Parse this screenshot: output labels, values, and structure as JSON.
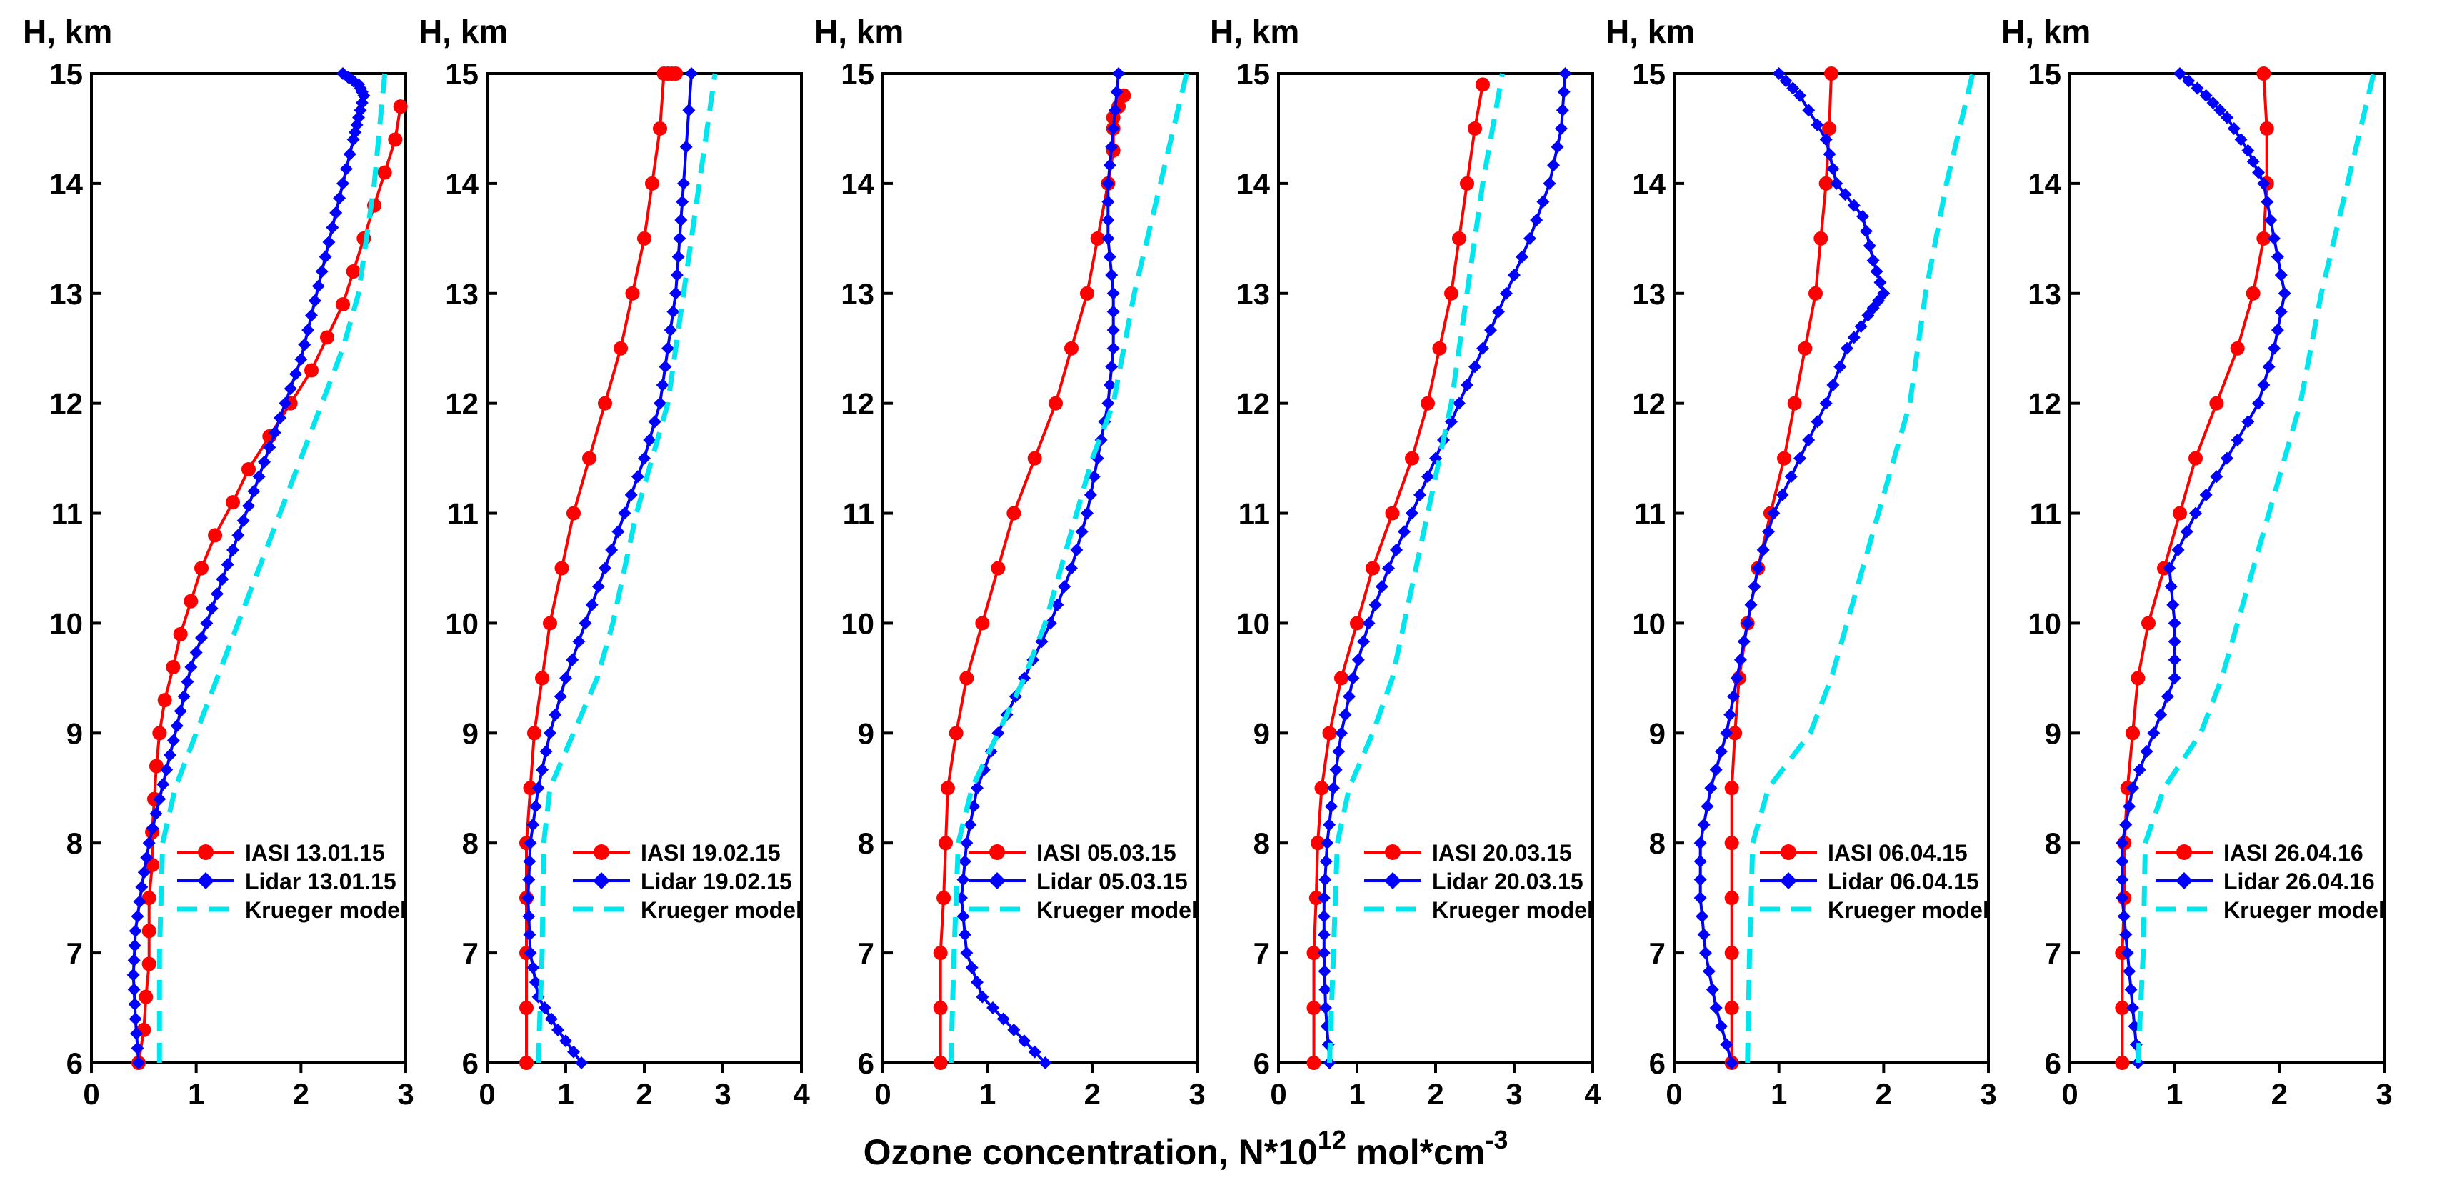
{
  "figure": {
    "xlabel_main": "Ozone concentration, N*10",
    "xlabel_sup1": "12",
    "xlabel_mid": " mol*cm",
    "xlabel_sup2": "-3"
  },
  "colors": {
    "iasi": "#ff0000",
    "lidar": "#0000ff",
    "krueger": "#00e5ee"
  },
  "chart_data": [
    {
      "type": "line",
      "ylabel": "H, km",
      "ylim": [
        6,
        15
      ],
      "xlim": [
        0,
        3
      ],
      "xticks": [
        "0",
        "1",
        "2",
        "3"
      ],
      "yticks": [
        "6",
        "7",
        "8",
        "9",
        "10",
        "11",
        "12",
        "13",
        "14",
        "15"
      ],
      "legend": [
        "IASI 13.01.15",
        "Lidar 13.01.15",
        "Krueger model"
      ],
      "series": [
        {
          "name": "IASI 13.01.15",
          "x": [
            0.45,
            0.5,
            0.52,
            0.55,
            0.55,
            0.55,
            0.58,
            0.58,
            0.6,
            0.62,
            0.65,
            0.7,
            0.78,
            0.85,
            0.95,
            1.05,
            1.18,
            1.35,
            1.5,
            1.7,
            1.9,
            2.1,
            2.25,
            2.4,
            2.5,
            2.6,
            2.7,
            2.8,
            2.9,
            2.95
          ],
          "y": [
            6,
            6.3,
            6.6,
            6.9,
            7.2,
            7.5,
            7.8,
            8.1,
            8.4,
            8.7,
            9,
            9.3,
            9.6,
            9.9,
            10.2,
            10.5,
            10.8,
            11.1,
            11.4,
            11.7,
            12,
            12.3,
            12.6,
            12.9,
            13.2,
            13.5,
            13.8,
            14.1,
            14.4,
            14.7
          ]
        },
        {
          "name": "Lidar 13.01.15",
          "x": [
            0.45,
            0.42,
            0.4,
            0.42,
            0.48,
            0.55,
            0.65,
            0.75,
            0.85,
            0.95,
            1.1,
            1.25,
            1.4,
            1.55,
            1.7,
            1.85,
            2.0,
            2.1,
            2.2,
            2.3,
            2.4,
            2.5,
            2.55,
            2.6,
            2.55,
            2.4
          ],
          "y": [
            6,
            6.4,
            6.8,
            7.2,
            7.6,
            8,
            8.4,
            8.8,
            9.2,
            9.6,
            10,
            10.4,
            10.8,
            11.2,
            11.6,
            12,
            12.4,
            12.8,
            13.2,
            13.6,
            14,
            14.4,
            14.6,
            14.8,
            14.9,
            15
          ]
        },
        {
          "name": "Krueger model",
          "x": [
            0.65,
            0.65,
            0.68,
            0.8,
            1.0,
            1.2,
            1.4,
            1.6,
            1.8,
            2.0,
            2.2,
            2.4,
            2.55,
            2.7,
            2.8
          ],
          "y": [
            6,
            7,
            8,
            8.5,
            9,
            9.5,
            10,
            10.5,
            11,
            11.5,
            12,
            12.5,
            13,
            14,
            15
          ]
        }
      ]
    },
    {
      "type": "line",
      "ylabel": "H, km",
      "ylim": [
        6,
        15
      ],
      "xlim": [
        0,
        4
      ],
      "xticks": [
        "0",
        "1",
        "2",
        "3",
        "4"
      ],
      "yticks": [
        "6",
        "7",
        "8",
        "9",
        "10",
        "11",
        "12",
        "13",
        "14",
        "15"
      ],
      "legend": [
        "IASI 19.02.15",
        "Lidar 19.02.15",
        "Krueger model"
      ],
      "series": [
        {
          "name": "IASI 19.02.15",
          "x": [
            0.5,
            0.5,
            0.5,
            0.5,
            0.5,
            0.55,
            0.6,
            0.7,
            0.8,
            0.95,
            1.1,
            1.3,
            1.5,
            1.7,
            1.85,
            2.0,
            2.1,
            2.2,
            2.25,
            2.3,
            2.35,
            2.4
          ],
          "y": [
            6,
            6.5,
            7,
            7.5,
            8,
            8.5,
            9,
            9.5,
            10,
            10.5,
            11,
            11.5,
            12,
            12.5,
            13,
            13.5,
            14,
            14.5,
            15,
            15,
            15,
            15
          ]
        },
        {
          "name": "Lidar 19.02.15",
          "x": [
            1.2,
            0.9,
            0.65,
            0.55,
            0.52,
            0.55,
            0.65,
            0.8,
            1.0,
            1.25,
            1.5,
            1.75,
            2.0,
            2.2,
            2.3,
            2.4,
            2.45,
            2.5,
            2.6
          ],
          "y": [
            6,
            6.3,
            6.6,
            7,
            7.5,
            8,
            8.5,
            9,
            9.5,
            10,
            10.5,
            11,
            11.5,
            12,
            12.5,
            13,
            13.5,
            14,
            15
          ]
        },
        {
          "name": "Krueger model",
          "x": [
            0.65,
            0.7,
            0.72,
            0.8,
            1.1,
            1.4,
            1.6,
            1.75,
            1.9,
            2.1,
            2.3,
            2.5,
            2.7,
            2.9
          ],
          "y": [
            6,
            7,
            8,
            8.5,
            9,
            9.5,
            10,
            10.5,
            11,
            11.5,
            12,
            13,
            14,
            15
          ]
        }
      ]
    },
    {
      "type": "line",
      "ylabel": "H, km",
      "ylim": [
        6,
        15
      ],
      "xlim": [
        0,
        3
      ],
      "xticks": [
        "0",
        "1",
        "2",
        "3"
      ],
      "yticks": [
        "6",
        "7",
        "8",
        "9",
        "10",
        "11",
        "12",
        "13",
        "14",
        "15"
      ],
      "legend": [
        "IASI 05.03.15",
        "Lidar 05.03.15",
        "Krueger model"
      ],
      "series": [
        {
          "name": "IASI 05.03.15",
          "x": [
            0.55,
            0.55,
            0.55,
            0.58,
            0.6,
            0.62,
            0.7,
            0.8,
            0.95,
            1.1,
            1.25,
            1.45,
            1.65,
            1.8,
            1.95,
            2.05,
            2.15,
            2.2,
            2.2,
            2.2,
            2.25,
            2.3
          ],
          "y": [
            6,
            6.5,
            7,
            7.5,
            8,
            8.5,
            9,
            9.5,
            10,
            10.5,
            11,
            11.5,
            12,
            12.5,
            13,
            13.5,
            14,
            14.3,
            14.5,
            14.6,
            14.7,
            14.8
          ]
        },
        {
          "name": "Lidar 05.03.15",
          "x": [
            1.55,
            1.25,
            0.95,
            0.8,
            0.75,
            0.8,
            0.9,
            1.1,
            1.35,
            1.6,
            1.8,
            1.95,
            2.05,
            2.15,
            2.2,
            2.2,
            2.15,
            2.15,
            2.2,
            2.25
          ],
          "y": [
            6,
            6.3,
            6.6,
            7,
            7.5,
            8,
            8.5,
            9,
            9.5,
            10,
            10.5,
            11,
            11.5,
            12,
            12.5,
            13,
            13.5,
            14,
            14.5,
            15
          ]
        },
        {
          "name": "Krueger model",
          "x": [
            0.65,
            0.68,
            0.72,
            0.85,
            1.1,
            1.35,
            1.55,
            1.7,
            1.85,
            2.0,
            2.2,
            2.4,
            2.65,
            2.9
          ],
          "y": [
            6,
            7,
            8,
            8.5,
            9,
            9.5,
            10,
            10.5,
            11,
            11.5,
            12,
            13,
            14,
            15
          ]
        }
      ]
    },
    {
      "type": "line",
      "ylabel": "H, km",
      "ylim": [
        6,
        15
      ],
      "xlim": [
        0,
        4
      ],
      "xticks": [
        "0",
        "1",
        "2",
        "3",
        "4"
      ],
      "yticks": [
        "6",
        "7",
        "8",
        "9",
        "10",
        "11",
        "12",
        "13",
        "14",
        "15"
      ],
      "legend": [
        "IASI 20.03.15",
        "Lidar 20.03.15",
        "Krueger model"
      ],
      "series": [
        {
          "name": "IASI 20.03.15",
          "x": [
            0.45,
            0.45,
            0.45,
            0.48,
            0.5,
            0.55,
            0.65,
            0.8,
            1.0,
            1.2,
            1.45,
            1.7,
            1.9,
            2.05,
            2.2,
            2.3,
            2.4,
            2.5,
            2.6
          ],
          "y": [
            6,
            6.5,
            7,
            7.5,
            8,
            8.5,
            9,
            9.5,
            10,
            10.5,
            11,
            11.5,
            12,
            12.5,
            13,
            13.5,
            14,
            14.5,
            14.9
          ]
        },
        {
          "name": "Lidar 20.03.15",
          "x": [
            0.65,
            0.6,
            0.58,
            0.58,
            0.62,
            0.7,
            0.8,
            0.95,
            1.15,
            1.4,
            1.7,
            2.0,
            2.3,
            2.6,
            2.9,
            3.2,
            3.45,
            3.6,
            3.65
          ],
          "y": [
            6,
            6.5,
            7,
            7.5,
            8,
            8.5,
            9,
            9.5,
            10,
            10.5,
            11,
            11.5,
            12,
            12.5,
            13,
            13.5,
            14,
            14.5,
            15
          ]
        },
        {
          "name": "Krueger model",
          "x": [
            0.65,
            0.7,
            0.75,
            0.9,
            1.2,
            1.45,
            1.6,
            1.75,
            1.9,
            2.05,
            2.2,
            2.4,
            2.6,
            2.85
          ],
          "y": [
            6,
            7,
            8,
            8.5,
            9,
            9.5,
            10,
            10.5,
            11,
            11.5,
            12,
            13,
            14,
            15
          ]
        }
      ]
    },
    {
      "type": "line",
      "ylabel": "H, km",
      "ylim": [
        6,
        15
      ],
      "xlim": [
        0,
        3
      ],
      "xticks": [
        "0",
        "1",
        "2",
        "3"
      ],
      "yticks": [
        "6",
        "7",
        "8",
        "9",
        "10",
        "11",
        "12",
        "13",
        "14",
        "15"
      ],
      "legend": [
        "IASI 06.04.15",
        "Lidar 06.04.15",
        "Krueger model"
      ],
      "series": [
        {
          "name": "IASI 06.04.15",
          "x": [
            0.55,
            0.55,
            0.55,
            0.55,
            0.55,
            0.55,
            0.58,
            0.62,
            0.7,
            0.8,
            0.92,
            1.05,
            1.15,
            1.25,
            1.35,
            1.4,
            1.45,
            1.48,
            1.5
          ],
          "y": [
            6,
            6.5,
            7,
            7.5,
            8,
            8.5,
            9,
            9.5,
            10,
            10.5,
            11,
            11.5,
            12,
            12.5,
            13,
            13.5,
            14,
            14.5,
            15
          ]
        },
        {
          "name": "Lidar 06.04.15",
          "x": [
            0.55,
            0.4,
            0.3,
            0.25,
            0.25,
            0.35,
            0.5,
            0.6,
            0.7,
            0.8,
            0.95,
            1.2,
            1.45,
            1.65,
            1.85,
            2.0,
            1.9,
            1.8,
            1.55,
            1.45,
            1.2,
            1.0
          ],
          "y": [
            6,
            6.5,
            7,
            7.5,
            8,
            8.5,
            9,
            9.5,
            10,
            10.5,
            11,
            11.5,
            12,
            12.5,
            12.8,
            13,
            13.3,
            13.7,
            14,
            14.4,
            14.8,
            15
          ]
        },
        {
          "name": "Krueger model",
          "x": [
            0.7,
            0.72,
            0.75,
            0.9,
            1.3,
            1.5,
            1.65,
            1.8,
            1.95,
            2.1,
            2.25,
            2.4,
            2.6,
            2.85
          ],
          "y": [
            6,
            7,
            8,
            8.5,
            9,
            9.5,
            10,
            10.5,
            11,
            11.5,
            12,
            13,
            14,
            15
          ]
        }
      ]
    },
    {
      "type": "line",
      "ylabel": "H, km",
      "ylim": [
        6,
        15
      ],
      "xlim": [
        0,
        3
      ],
      "xticks": [
        "0",
        "1",
        "2",
        "3"
      ],
      "yticks": [
        "6",
        "7",
        "8",
        "9",
        "10",
        "11",
        "12",
        "13",
        "14",
        "15"
      ],
      "legend": [
        "IASI 26.04.16",
        "Lidar 26.04.16",
        "Krueger model"
      ],
      "series": [
        {
          "name": "IASI 26.04.16",
          "x": [
            0.5,
            0.5,
            0.5,
            0.52,
            0.52,
            0.55,
            0.6,
            0.65,
            0.75,
            0.9,
            1.05,
            1.2,
            1.4,
            1.6,
            1.75,
            1.85,
            1.88,
            1.88,
            1.85
          ],
          "y": [
            6,
            6.5,
            7,
            7.5,
            8,
            8.5,
            9,
            9.5,
            10,
            10.5,
            11,
            11.5,
            12,
            12.5,
            13,
            13.5,
            14,
            14.5,
            15
          ]
        },
        {
          "name": "Lidar 26.04.16",
          "x": [
            0.65,
            0.6,
            0.55,
            0.5,
            0.5,
            0.6,
            0.8,
            1.0,
            1.0,
            0.95,
            1.2,
            1.5,
            1.8,
            1.95,
            2.05,
            1.95,
            1.85,
            1.7,
            1.5,
            1.3,
            1.05
          ],
          "y": [
            6,
            6.5,
            7,
            7.5,
            8,
            8.5,
            9,
            9.5,
            10,
            10.5,
            11,
            11.5,
            12,
            12.5,
            13,
            13.5,
            14,
            14.3,
            14.6,
            14.8,
            15
          ]
        },
        {
          "name": "Krueger model",
          "x": [
            0.65,
            0.7,
            0.72,
            0.9,
            1.25,
            1.45,
            1.6,
            1.75,
            1.9,
            2.05,
            2.2,
            2.4,
            2.65,
            2.9
          ],
          "y": [
            6,
            7,
            8,
            8.5,
            9,
            9.5,
            10,
            10.5,
            11,
            11.5,
            12,
            13,
            14,
            15
          ]
        }
      ]
    }
  ]
}
